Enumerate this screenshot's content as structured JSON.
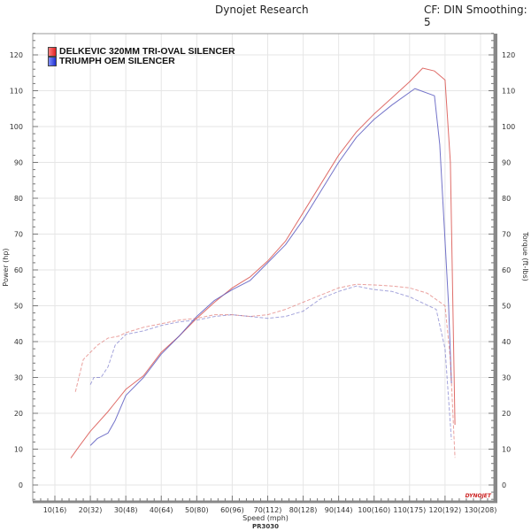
{
  "header": {
    "brand": "Dynojet Research",
    "settings": "CF: DIN Smoothing: 5"
  },
  "footer": {
    "run_id": "PR3030",
    "logo_text": "DYNOJET"
  },
  "chart_data": {
    "type": "line",
    "title": "",
    "xlabel": "Speed (mph)",
    "ylabel": "Power (hp)",
    "y2label": "Torque (ft-lbs)",
    "xlim": [
      4,
      134
    ],
    "ylim": [
      -5,
      127
    ],
    "y2lim": [
      -5,
      127
    ],
    "grid": true,
    "legend_placement": "top-left",
    "x_tick_labels": [
      "10(16)",
      "20(32)",
      "30(48)",
      "40(64)",
      "50(80)",
      "60(96)",
      "70(112)",
      "80(128)",
      "90(144)",
      "100(160)",
      "110(175)",
      "120(192)",
      "130(208)"
    ],
    "x_ticks": [
      10,
      20,
      30,
      40,
      50,
      60,
      70,
      80,
      90,
      100,
      110,
      120,
      130
    ],
    "y_ticks": [
      0,
      10,
      20,
      30,
      40,
      50,
      60,
      70,
      80,
      90,
      100,
      110,
      120
    ],
    "y_tick_labels": [
      "0",
      "10",
      "20",
      "30",
      "40",
      "50",
      "60",
      "70",
      "80",
      "90",
      "100",
      "110",
      "120"
    ],
    "series": [
      {
        "name": "DELKEVIC 320MM TRI-OVAL SILENCER",
        "measure": "power",
        "color": "#d9534f",
        "points": [
          [
            14.5,
            7.5
          ],
          [
            17,
            11
          ],
          [
            20,
            15
          ],
          [
            25,
            20.5
          ],
          [
            30,
            26.7
          ],
          [
            35,
            30.5
          ],
          [
            40,
            37
          ],
          [
            45,
            41.5
          ],
          [
            50,
            46.5
          ],
          [
            55,
            51
          ],
          [
            60,
            55
          ],
          [
            65,
            58
          ],
          [
            70,
            62.5
          ],
          [
            75,
            68
          ],
          [
            80,
            76
          ],
          [
            85,
            84
          ],
          [
            90,
            92
          ],
          [
            95,
            98.5
          ],
          [
            100,
            103.5
          ],
          [
            105,
            108
          ],
          [
            110,
            112.5
          ],
          [
            113.7,
            116.3
          ],
          [
            117,
            115.5
          ],
          [
            120,
            113
          ],
          [
            121.5,
            90
          ],
          [
            122.8,
            16.8
          ]
        ]
      },
      {
        "name": "TRIUMPH OEM SILENCER",
        "measure": "power",
        "color": "#5b5bc0",
        "points": [
          [
            20,
            11
          ],
          [
            22,
            13
          ],
          [
            25,
            14.5
          ],
          [
            27,
            18
          ],
          [
            30,
            25
          ],
          [
            35,
            30
          ],
          [
            40,
            36.5
          ],
          [
            45,
            41.5
          ],
          [
            50,
            47
          ],
          [
            55,
            51.5
          ],
          [
            60,
            54.5
          ],
          [
            65,
            57
          ],
          [
            70,
            62
          ],
          [
            75,
            67
          ],
          [
            80,
            74
          ],
          [
            85,
            82
          ],
          [
            90,
            90
          ],
          [
            95,
            97
          ],
          [
            100,
            102
          ],
          [
            105,
            106
          ],
          [
            111.5,
            110.6
          ],
          [
            117,
            108.6
          ],
          [
            118.5,
            95
          ],
          [
            121,
            50
          ],
          [
            121.8,
            28.4
          ]
        ]
      },
      {
        "name": "DELKEVIC 320MM TRI-OVAL SILENCER",
        "measure": "torque",
        "color": "#d9534f",
        "points": [
          [
            15.8,
            26
          ],
          [
            17,
            31
          ],
          [
            18,
            35
          ],
          [
            20,
            37
          ],
          [
            22,
            39
          ],
          [
            25,
            41
          ],
          [
            28,
            41.5
          ],
          [
            30,
            42.5
          ],
          [
            35,
            44
          ],
          [
            40,
            45
          ],
          [
            45,
            46
          ],
          [
            50,
            46.5
          ],
          [
            55,
            47.5
          ],
          [
            60,
            47.5
          ],
          [
            65,
            47
          ],
          [
            70,
            47.5
          ],
          [
            75,
            49
          ],
          [
            80,
            51
          ],
          [
            85,
            53
          ],
          [
            90,
            55
          ],
          [
            95,
            56
          ],
          [
            100,
            55.8
          ],
          [
            105,
            55.5
          ],
          [
            110,
            55
          ],
          [
            115,
            53.5
          ],
          [
            120,
            50
          ],
          [
            121.5,
            35
          ],
          [
            122.8,
            7.6
          ]
        ]
      },
      {
        "name": "TRIUMPH OEM SILENCER",
        "measure": "torque",
        "color": "#5b5bc0",
        "points": [
          [
            20,
            28
          ],
          [
            21,
            30
          ],
          [
            23,
            30
          ],
          [
            25,
            33
          ],
          [
            27,
            39
          ],
          [
            30,
            42
          ],
          [
            35,
            43
          ],
          [
            40,
            44.5
          ],
          [
            45,
            45.5
          ],
          [
            50,
            46
          ],
          [
            55,
            47
          ],
          [
            60,
            47.5
          ],
          [
            65,
            47
          ],
          [
            70,
            46.5
          ],
          [
            75,
            47
          ],
          [
            80,
            48.5
          ],
          [
            85,
            52
          ],
          [
            90,
            54
          ],
          [
            95,
            55.5
          ],
          [
            99.5,
            54.6
          ],
          [
            105,
            54
          ],
          [
            110,
            52.5
          ],
          [
            117.5,
            49
          ],
          [
            120,
            38
          ],
          [
            121.8,
            12.6
          ]
        ]
      }
    ]
  },
  "legend": [
    {
      "label": "DELKEVIC 320MM TRI-OVAL SILENCER",
      "color": "#e02020"
    },
    {
      "label": "TRIUMPH OEM SILENCER",
      "color": "#2030d0"
    }
  ]
}
